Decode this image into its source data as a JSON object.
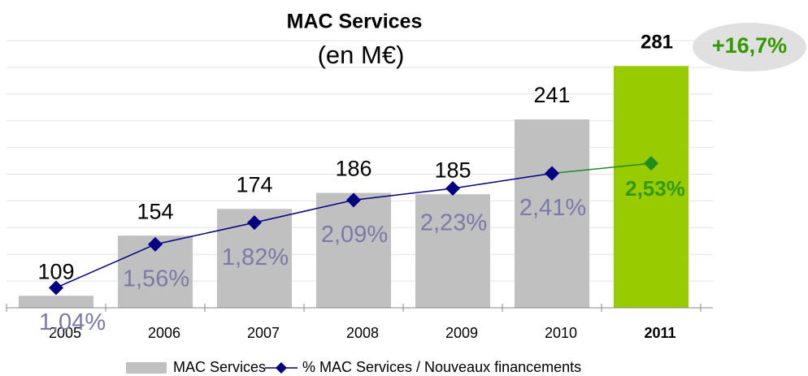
{
  "chart_data": {
    "type": "bar_line",
    "title": "MAC Services",
    "subtitle": "(en M€)",
    "annotation": "+16,7%",
    "categories": [
      "2005",
      "2006",
      "2007",
      "2008",
      "2009",
      "2010",
      "2011"
    ],
    "highlight_index": 6,
    "series": [
      {
        "name": "MAC Services",
        "type": "bar",
        "color": "#c0c0c0",
        "highlight_color": "#99cc00",
        "values": [
          109,
          154,
          174,
          186,
          185,
          241,
          281
        ]
      },
      {
        "name": "% MAC Services / Nouveaux financements",
        "type": "line",
        "axis": "y2",
        "color": "#000080",
        "highlight_color": "#228b22",
        "values": [
          1.04,
          1.56,
          1.82,
          2.09,
          2.23,
          2.41,
          2.53
        ],
        "value_labels": [
          "1,04%",
          "1,56%",
          "1,82%",
          "2,09%",
          "2,23%",
          "2,41%",
          "2,53%"
        ]
      }
    ],
    "ylim": [
      100,
      300
    ],
    "yticks": [
      100,
      120,
      140,
      160,
      180,
      200,
      220,
      240,
      260,
      280,
      300
    ],
    "y2lim": [
      0.8,
      4.0
    ],
    "grid": true,
    "legend": "bottom"
  }
}
